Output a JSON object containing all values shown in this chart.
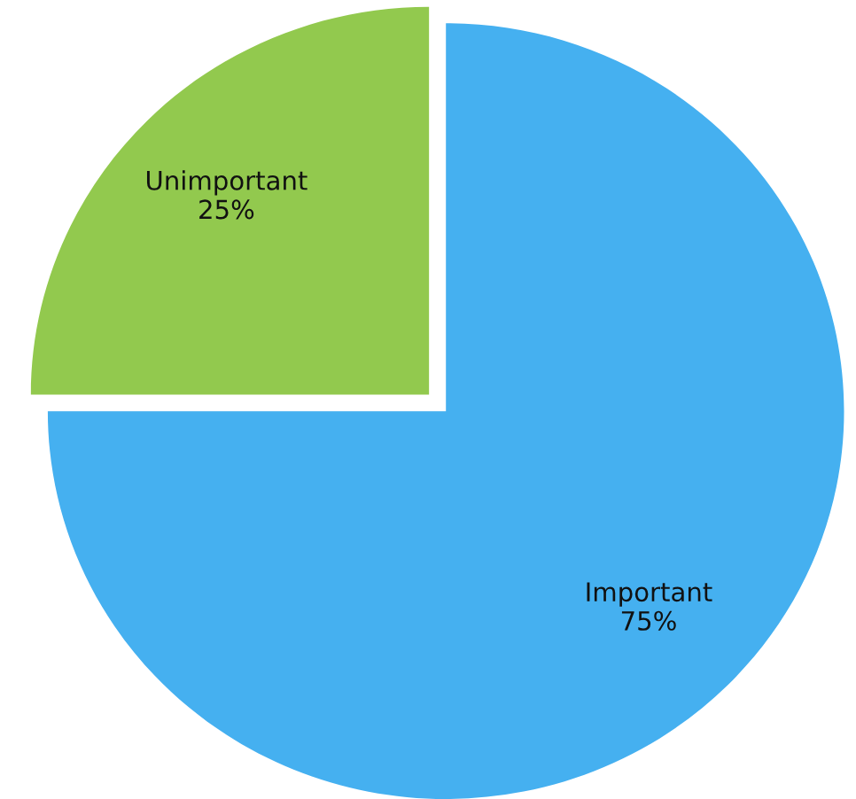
{
  "chart_data": {
    "type": "pie",
    "categories": [
      "Important",
      "Unimportant"
    ],
    "values": [
      75,
      25
    ],
    "value_labels": [
      "75%",
      "25%"
    ],
    "colors": [
      "#45b0f0",
      "#92c94e"
    ]
  }
}
